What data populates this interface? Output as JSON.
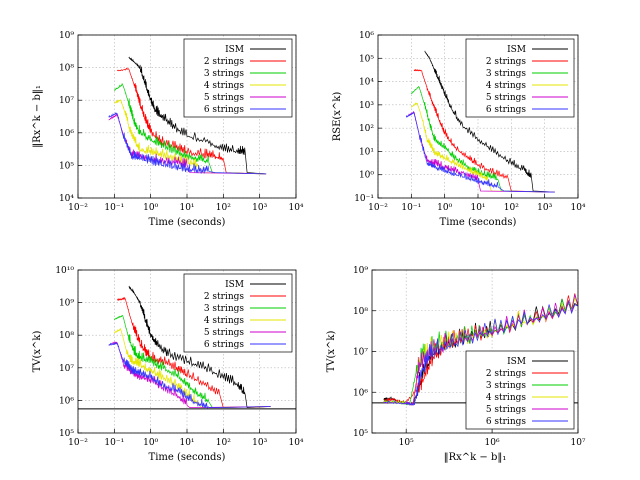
{
  "chart_data": [
    {
      "type": "line",
      "xlabel": "Time (seconds)",
      "ylabel": "‖Rx^k − b‖₁",
      "xscale": "log",
      "yscale": "log",
      "xlim": [
        0.01,
        10000
      ],
      "ylim": [
        10000,
        1000000000
      ],
      "xticks": [
        "10⁻²",
        "10⁻¹",
        "10⁰",
        "10¹",
        "10²",
        "10³",
        "10⁴"
      ],
      "yticks": [
        "10⁴",
        "10⁵",
        "10⁶",
        "10⁷",
        "10⁸",
        "10⁹"
      ],
      "grid": true,
      "legend_position": "top-right",
      "series": [
        {
          "name": "ISM",
          "color": "#000000",
          "x": [
            0.25,
            0.35,
            0.5,
            0.7,
            1.0,
            1.3,
            2,
            4,
            10,
            40,
            100,
            250,
            400
          ],
          "y": [
            200000000.0,
            150000000.0,
            100000000.0,
            30000000.0,
            10000000.0,
            5000000.0,
            3000000.0,
            1500000.0,
            800000.0,
            500000.0,
            300000.0,
            250000.0,
            250000.0
          ],
          "tail_x": [
            450,
            1500
          ],
          "tail_y": [
            60000,
            55000
          ]
        },
        {
          "name": "2 strings",
          "color": "#ff0000",
          "x": [
            0.12,
            0.25,
            0.35,
            0.5,
            0.7,
            1,
            2,
            5,
            10,
            30,
            60,
            100
          ],
          "y": [
            80000000.0,
            90000000.0,
            30000000.0,
            8000000.0,
            2500000.0,
            1000000.0,
            500000.0,
            350000.0,
            250000.0,
            200000.0,
            180000.0,
            160000.0
          ],
          "tail_x": [
            120,
            1500
          ],
          "tail_y": [
            60000,
            55000
          ]
        },
        {
          "name": "3 strings",
          "color": "#00cc00",
          "x": [
            0.1,
            0.17,
            0.25,
            0.35,
            0.5,
            1,
            2,
            5,
            10,
            20,
            40
          ],
          "y": [
            20000000.0,
            30000000.0,
            8000000.0,
            2000000.0,
            1000000.0,
            600000.0,
            400000.0,
            250000.0,
            180000.0,
            150000.0,
            120000.0
          ],
          "tail_x": [
            50,
            1500
          ],
          "tail_y": [
            60000,
            55000
          ]
        },
        {
          "name": "4 strings",
          "color": "#e6e600",
          "x": [
            0.1,
            0.15,
            0.2,
            0.3,
            0.5,
            1,
            2,
            5,
            10,
            20
          ],
          "y": [
            8000000.0,
            10000000.0,
            4000000.0,
            800000.0,
            300000.0,
            250000.0,
            200000.0,
            150000.0,
            120000.0,
            100000.0
          ],
          "tail_x": [
            25,
            1500
          ],
          "tail_y": [
            60000,
            55000
          ]
        },
        {
          "name": "5 strings",
          "color": "#cc00cc",
          "x": [
            0.07,
            0.12,
            0.18,
            0.3,
            0.5,
            1,
            2,
            5,
            10
          ],
          "y": [
            2500000.0,
            3500000.0,
            800000.0,
            200000.0,
            170000.0,
            150000.0,
            130000.0,
            120000.0,
            100000.0
          ],
          "tail_x": [
            12,
            1500
          ],
          "tail_y": [
            60000,
            55000
          ]
        },
        {
          "name": "6 strings",
          "color": "#3333ff",
          "x": [
            0.07,
            0.12,
            0.18,
            0.3,
            0.5,
            1,
            2,
            5,
            10,
            20,
            40
          ],
          "y": [
            3000000.0,
            4000000.0,
            700000.0,
            180000.0,
            160000.0,
            130000.0,
            100000.0,
            85000.0,
            75000.0,
            70000.0,
            65000.0
          ],
          "tail_x": [
            60,
            1500
          ],
          "tail_y": [
            60000,
            55000
          ]
        }
      ]
    },
    {
      "type": "line",
      "xlabel": "Time (seconds)",
      "ylabel": "RSE(x^k)",
      "xscale": "log",
      "yscale": "log",
      "xlim": [
        0.01,
        10000
      ],
      "ylim": [
        0.1,
        1000000
      ],
      "xticks": [
        "10⁻²",
        "10⁻¹",
        "10⁰",
        "10¹",
        "10²",
        "10³",
        "10⁴"
      ],
      "yticks": [
        "10⁻¹",
        "10⁰",
        "10¹",
        "10²",
        "10³",
        "10⁴",
        "10⁵",
        "10⁶"
      ],
      "grid": true,
      "legend_position": "top-right",
      "series": [
        {
          "name": "ISM",
          "color": "#000000",
          "x": [
            0.25,
            0.35,
            0.5,
            0.7,
            1,
            1.5,
            3,
            10,
            30,
            100,
            250,
            400
          ],
          "y": [
            200000.0,
            100000.0,
            30000.0,
            10000.0,
            3000.0,
            800,
            150,
            30,
            10,
            3,
            1.5,
            0.8
          ],
          "tail_x": [
            450,
            2000
          ],
          "tail_y": [
            0.2,
            0.18
          ]
        },
        {
          "name": "2 strings",
          "color": "#ff0000",
          "x": [
            0.12,
            0.2,
            0.3,
            0.45,
            0.7,
            1,
            2,
            5,
            10,
            30,
            80
          ],
          "y": [
            30000.0,
            30000.0,
            5000.0,
            1000.0,
            200,
            60,
            15,
            5,
            2.5,
            1.2,
            0.7
          ],
          "tail_x": [
            100,
            2000
          ],
          "tail_y": [
            0.2,
            0.18
          ]
        },
        {
          "name": "3 strings",
          "color": "#00cc00",
          "x": [
            0.1,
            0.17,
            0.25,
            0.35,
            0.5,
            1,
            2,
            5,
            10,
            20,
            40
          ],
          "y": [
            3000.0,
            6000.0,
            1000.0,
            150,
            30,
            15,
            5,
            2,
            1.2,
            0.9,
            0.6
          ],
          "tail_x": [
            50,
            2000
          ],
          "tail_y": [
            0.2,
            0.18
          ]
        },
        {
          "name": "4 strings",
          "color": "#e6e600",
          "x": [
            0.1,
            0.15,
            0.22,
            0.3,
            0.5,
            1,
            2,
            5,
            10,
            20
          ],
          "y": [
            800,
            1200,
            200,
            30,
            8,
            5,
            3,
            1.5,
            1,
            0.6
          ],
          "tail_x": [
            25,
            2000
          ],
          "tail_y": [
            0.2,
            0.18
          ]
        },
        {
          "name": "5 strings",
          "color": "#cc00cc",
          "x": [
            0.07,
            0.12,
            0.18,
            0.3,
            0.5,
            1,
            2,
            5,
            10
          ],
          "y": [
            300,
            500,
            40,
            4,
            3,
            2,
            1.5,
            1,
            0.6
          ],
          "tail_x": [
            12,
            2000
          ],
          "tail_y": [
            0.2,
            0.18
          ]
        },
        {
          "name": "6 strings",
          "color": "#3333ff",
          "x": [
            0.07,
            0.12,
            0.18,
            0.3,
            0.5,
            1,
            2,
            5,
            10,
            20,
            40
          ],
          "y": [
            300,
            450,
            40,
            3,
            2,
            1.5,
            1,
            0.7,
            0.5,
            0.4,
            0.3
          ],
          "tail_x": [
            60,
            2000
          ],
          "tail_y": [
            0.2,
            0.18
          ]
        }
      ]
    },
    {
      "type": "line",
      "xlabel": "Time (seconds)",
      "ylabel": "TV(x^k)",
      "xscale": "log",
      "yscale": "log",
      "xlim": [
        0.01,
        10000
      ],
      "ylim": [
        100000,
        10000000000
      ],
      "xticks": [
        "10⁻²",
        "10⁻¹",
        "10⁰",
        "10¹",
        "10²",
        "10³",
        "10⁴"
      ],
      "yticks": [
        "10⁵",
        "10⁶",
        "10⁷",
        "10⁸",
        "10⁹",
        "10¹⁰"
      ],
      "grid": true,
      "legend_position": "top-right",
      "reference_line": 550000,
      "series": [
        {
          "name": "ISM",
          "color": "#000000",
          "x": [
            0.25,
            0.35,
            0.5,
            0.7,
            1,
            1.5,
            3,
            10,
            30,
            100,
            250,
            400
          ],
          "y": [
            3000000000.0,
            2000000000.0,
            1000000000.0,
            300000000.0,
            100000000.0,
            50000000.0,
            25000000.0,
            15000000.0,
            10000000.0,
            5000000.0,
            3000000.0,
            1500000.0
          ],
          "tail_x": [
            450,
            2000
          ],
          "tail_y": [
            600000,
            650000
          ]
        },
        {
          "name": "2 strings",
          "color": "#ff0000",
          "x": [
            0.12,
            0.2,
            0.3,
            0.45,
            0.7,
            1,
            2,
            5,
            10,
            30,
            80
          ],
          "y": [
            1200000000.0,
            1300000000.0,
            250000000.0,
            70000000.0,
            30000000.0,
            20000000.0,
            15000000.0,
            10000000.0,
            6000000.0,
            3000000.0,
            1500000.0
          ],
          "tail_x": [
            100,
            2000
          ],
          "tail_y": [
            600000,
            650000
          ]
        },
        {
          "name": "3 strings",
          "color": "#00cc00",
          "x": [
            0.1,
            0.17,
            0.25,
            0.35,
            0.5,
            1,
            2,
            5,
            10,
            20,
            40
          ],
          "y": [
            300000000.0,
            400000000.0,
            80000000.0,
            30000000.0,
            20000000.0,
            15000000.0,
            10000000.0,
            6000000.0,
            3000000.0,
            1500000.0,
            900000.0
          ],
          "tail_x": [
            50,
            2000
          ],
          "tail_y": [
            600000,
            650000
          ]
        },
        {
          "name": "4 strings",
          "color": "#e6e600",
          "x": [
            0.1,
            0.15,
            0.22,
            0.3,
            0.5,
            1,
            2,
            5,
            10,
            20
          ],
          "y": [
            120000000.0,
            150000000.0,
            30000000.0,
            15000000.0,
            12000000.0,
            8000000.0,
            5000000.0,
            3000000.0,
            1500000.0,
            800000.0
          ],
          "tail_x": [
            25,
            2000
          ],
          "tail_y": [
            600000,
            650000
          ]
        },
        {
          "name": "5 strings",
          "color": "#cc00cc",
          "x": [
            0.07,
            0.12,
            0.18,
            0.3,
            0.5,
            1,
            2,
            5,
            10
          ],
          "y": [
            50000000.0,
            60000000.0,
            12000000.0,
            7000000.0,
            5000000.0,
            4000000.0,
            2500000.0,
            1500000.0,
            700000.0
          ],
          "tail_x": [
            12,
            2000
          ],
          "tail_y": [
            600000,
            650000
          ]
        },
        {
          "name": "6 strings",
          "color": "#3333ff",
          "x": [
            0.07,
            0.12,
            0.18,
            0.3,
            0.5,
            1,
            2,
            5,
            10,
            20,
            40
          ],
          "y": [
            50000000.0,
            55000000.0,
            15000000.0,
            8000000.0,
            6000000.0,
            5000000.0,
            3000000.0,
            2000000.0,
            1200000.0,
            800000.0,
            600000.0
          ],
          "tail_x": [
            60,
            2000
          ],
          "tail_y": [
            600000,
            650000
          ]
        }
      ]
    },
    {
      "type": "line",
      "xlabel": "‖Rx^k − b‖₁",
      "ylabel": "TV(x^k)",
      "xscale": "log",
      "yscale": "log",
      "xlim": [
        40000,
        10000000
      ],
      "ylim": [
        100000,
        1000000000
      ],
      "xticks": [
        "10⁵",
        "10⁶",
        "10⁷"
      ],
      "yticks": [
        "10⁵",
        "10⁶",
        "10⁷",
        "10⁸",
        "10⁹"
      ],
      "grid": true,
      "legend_position": "bottom-right",
      "reference_line": 550000,
      "series": [
        {
          "name": "ISM",
          "color": "#000000",
          "x": [
            55000,
            65000,
            90000,
            120000,
            150000,
            200000,
            300000,
            500000,
            1000000,
            3000000,
            10000000
          ],
          "y": [
            650000,
            700000,
            550000,
            500000,
            2000000,
            8000000,
            15000000,
            20000000,
            30000000,
            60000000,
            130000000
          ]
        },
        {
          "name": "2 strings",
          "color": "#ff0000",
          "x": [
            55000,
            70000,
            100000,
            150000,
            200000,
            300000,
            500000,
            1000000,
            3000000,
            10000000
          ],
          "y": [
            600000,
            650000,
            550000,
            1500000,
            6000000,
            14000000,
            20000000,
            30000000,
            60000000,
            130000000
          ]
        },
        {
          "name": "3 strings",
          "color": "#00cc00",
          "x": [
            55000,
            80000,
            110000,
            130000,
            160000,
            250000,
            500000,
            1000000,
            3000000,
            10000000
          ],
          "y": [
            600000,
            550000,
            500000,
            3000000,
            8000000,
            15000000,
            20000000,
            30000000,
            60000000,
            130000000
          ]
        },
        {
          "name": "4 strings",
          "color": "#e6e600",
          "x": [
            55000,
            90000,
            120000,
            140000,
            200000,
            400000,
            1000000,
            3000000,
            10000000
          ],
          "y": [
            580000,
            550000,
            500000,
            5000000,
            12000000,
            18000000,
            30000000,
            60000000,
            130000000
          ]
        },
        {
          "name": "5 strings",
          "color": "#cc00cc",
          "x": [
            55000,
            100000,
            120000,
            140000,
            200000,
            400000,
            1000000,
            3000000,
            10000000
          ],
          "y": [
            560000,
            530000,
            500000,
            4000000,
            10000000,
            17000000,
            30000000,
            60000000,
            130000000
          ]
        },
        {
          "name": "6 strings",
          "color": "#3333ff",
          "x": [
            55000,
            100000,
            125000,
            150000,
            200000,
            400000,
            1000000,
            3000000,
            10000000
          ],
          "y": [
            560000,
            530000,
            500000,
            3000000,
            9000000,
            16000000,
            30000000,
            60000000,
            130000000
          ]
        }
      ]
    }
  ]
}
